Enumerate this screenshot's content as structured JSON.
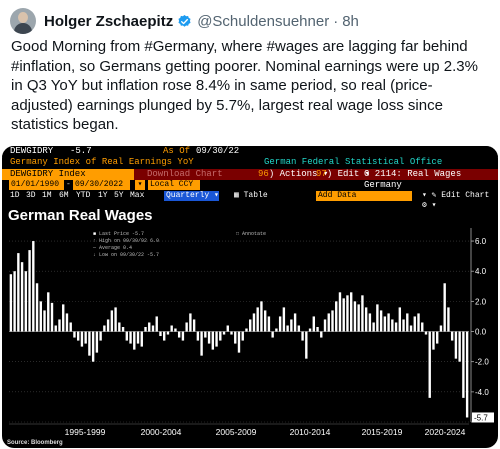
{
  "tweet": {
    "author": "Holger Zschaepitz",
    "handle": "@Schuldensuehner",
    "separator": "·",
    "time": "8h",
    "text": "Good Morning from #Germany, where #wages are lagging far behind #inflation, so Germans getting poorer. Nominal earnings were up 2.3% in Q3 YoY but inflation rose 8.4% in same period, so real (price-adjusted) earnings plunged by 5.7%, largest real wage loss since statistics began."
  },
  "terminal": {
    "ticker": "DEWGIDRY",
    "current_value": "-5.7",
    "as_of_label": "As Of",
    "as_of_date": "09/30/22",
    "description": "Germany Index of Real Earnings YoY",
    "source_name": "German Federal Statistical Office",
    "index_code": "DEWGIDRY Index",
    "download_label": "Download Chart",
    "actions_num": "96",
    "actions_label": "Actions",
    "edit_num": "97",
    "edit_label": "Edit",
    "graph_title": "G 2114: Real Wages Germany",
    "start_date": "01/01/1990",
    "end_date": "09/30/2022",
    "currency": "Local CCY",
    "periods": [
      "1D",
      "3D",
      "1M",
      "6M",
      "YTD",
      "1Y",
      "5Y",
      "Max"
    ],
    "frequency": "Quarterly",
    "table_label": "Table",
    "add_data_label": "Add Data",
    "edit_chart_label": "Edit Chart",
    "chart_title": "German Real Wages",
    "legend": {
      "last_price": "Last Price   -5.7",
      "high": "High on 09/30/92  6.0",
      "average": "Average   0.4",
      "low": "Low on 09/30/22  -5.7"
    },
    "annotate_label": "Annotate",
    "source_note": "Source: Bloomberg"
  },
  "colors": {
    "accent_orange": "#ff9d00",
    "bar_white": "#ffffff",
    "teal": "#22d6c8",
    "dark_red": "#7a0000",
    "blue": "#1a57d6",
    "verified_blue": "#1d9bf0"
  },
  "chart_data": {
    "type": "bar",
    "title": "German Real Wages",
    "ylim": [
      -6,
      6.6
    ],
    "yticks": [
      -6,
      -4,
      -2,
      0,
      2,
      4,
      6
    ],
    "ytick_labels": [
      "",
      "-4.0",
      "-2.0",
      "0.0",
      "2.0",
      "4.0",
      "6.0"
    ],
    "x_period_labels": [
      "1995-1999",
      "2000-2004",
      "2005-2009",
      "2010-2014",
      "2015-2019",
      "2020-2024"
    ],
    "last_value_label": "-5.7",
    "values": [
      3.8,
      4.0,
      5.2,
      4.6,
      4.0,
      5.4,
      6.0,
      3.2,
      2.0,
      1.4,
      2.6,
      1.9,
      0.4,
      0.8,
      1.8,
      1.2,
      0.6,
      -0.4,
      -0.6,
      -1.0,
      -0.8,
      -1.6,
      -2.0,
      -1.4,
      -0.6,
      0.4,
      0.8,
      1.4,
      1.6,
      0.6,
      0.3,
      -0.6,
      -0.8,
      -1.2,
      -0.8,
      -1.0,
      0.3,
      0.6,
      0.4,
      1.0,
      -0.3,
      -0.6,
      -0.2,
      0.4,
      0.2,
      -0.4,
      -0.6,
      0.6,
      1.2,
      0.8,
      -0.6,
      -1.6,
      -0.4,
      -0.8,
      -1.2,
      -1.0,
      -0.6,
      -0.2,
      0.4,
      -0.2,
      -0.8,
      -1.4,
      -0.6,
      0.2,
      0.8,
      1.2,
      1.6,
      2.0,
      1.4,
      1.0,
      -0.4,
      0.2,
      1.0,
      1.6,
      0.4,
      0.8,
      1.2,
      0.4,
      -0.6,
      -1.8,
      0.2,
      1.0,
      0.3,
      -0.4,
      0.8,
      1.2,
      1.4,
      2.0,
      2.6,
      2.2,
      2.4,
      2.6,
      2.0,
      1.8,
      2.4,
      1.6,
      1.2,
      0.6,
      1.8,
      1.4,
      1.0,
      1.2,
      0.8,
      0.6,
      1.6,
      0.8,
      1.2,
      0.4,
      1.0,
      1.2,
      0.6,
      -0.2,
      -4.4,
      -1.2,
      -0.8,
      0.4,
      3.2,
      1.6,
      -0.6,
      -1.8,
      -2.0,
      -4.4,
      -5.7
    ]
  }
}
